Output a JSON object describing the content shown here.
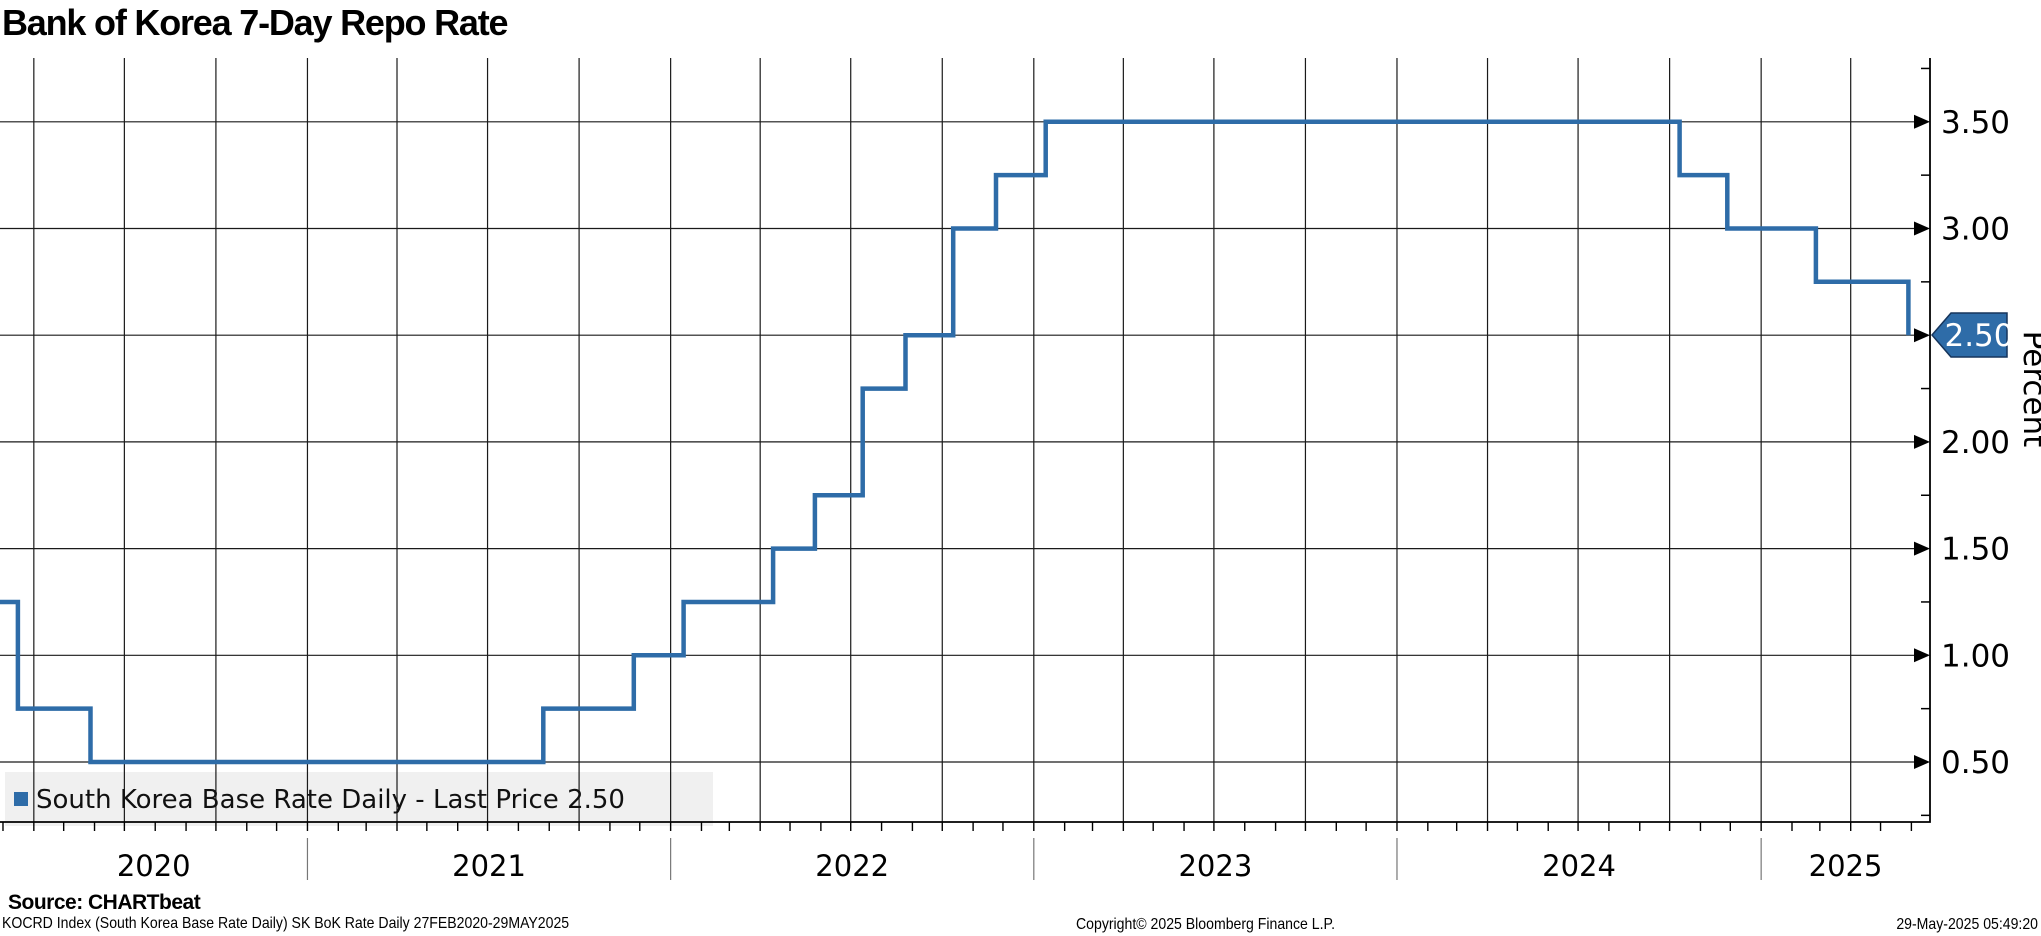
{
  "title": "Bank of Korea 7-Day Repo Rate",
  "legend": {
    "marker_color": "#2e6ca8",
    "label": "South Korea Base Rate Daily - Last Price 2.50"
  },
  "y_axis": {
    "label": "Percent",
    "tick_labels": [
      "3.50",
      "3.00",
      "2.00",
      "1.50",
      "1.00",
      "0.50"
    ],
    "tick_values": [
      3.5,
      3.0,
      2.0,
      1.5,
      1.0,
      0.5
    ],
    "last_price_badge": "2.50"
  },
  "x_axis": {
    "year_labels": [
      "2020",
      "2021",
      "2022",
      "2023",
      "2024",
      "2025"
    ]
  },
  "footer": {
    "source": "Source: CHARTbeat",
    "description": "KOCRD Index (South Korea Base Rate Daily) SK BoK Rate  Daily 27FEB2020-29MAY2025",
    "copyright": "Copyright© 2025 Bloomberg Finance L.P.",
    "timestamp": "29-May-2025 05:49:20"
  },
  "colors": {
    "line": "#2e6ca8",
    "badge_fill": "#2e6ca8",
    "badge_text": "#ffffff",
    "grid": "#1a1a1a",
    "axis": "#000000",
    "legend_bg": "#efefef"
  },
  "chart_data": {
    "type": "line",
    "style": "step-after",
    "title": "Bank of Korea 7-Day Repo Rate",
    "series_name": "South Korea Base Rate Daily",
    "ylabel": "Percent",
    "ylim": [
      0.23,
      3.8
    ],
    "y_major_ticks": [
      0.5,
      1.0,
      1.5,
      2.0,
      2.5,
      3.0,
      3.5
    ],
    "y_minor_tick_step": 0.25,
    "x_range": [
      "2020-02-27",
      "2025-05-29"
    ],
    "x_year_ticks": [
      2020,
      2021,
      2022,
      2023,
      2024,
      2025
    ],
    "grid": "both",
    "legend_position": "bottom-left",
    "last_price": 2.5,
    "steps": [
      {
        "date": "2020-02-27",
        "rate": 1.25
      },
      {
        "date": "2020-03-16",
        "rate": 0.75
      },
      {
        "date": "2020-05-28",
        "rate": 0.5
      },
      {
        "date": "2021-08-26",
        "rate": 0.75
      },
      {
        "date": "2021-11-25",
        "rate": 1.0
      },
      {
        "date": "2022-01-14",
        "rate": 1.25
      },
      {
        "date": "2022-04-14",
        "rate": 1.5
      },
      {
        "date": "2022-05-26",
        "rate": 1.75
      },
      {
        "date": "2022-07-13",
        "rate": 2.25
      },
      {
        "date": "2022-08-25",
        "rate": 2.5
      },
      {
        "date": "2022-10-12",
        "rate": 3.0
      },
      {
        "date": "2022-11-24",
        "rate": 3.25
      },
      {
        "date": "2023-01-13",
        "rate": 3.5
      },
      {
        "date": "2024-10-11",
        "rate": 3.25
      },
      {
        "date": "2024-11-28",
        "rate": 3.0
      },
      {
        "date": "2025-02-25",
        "rate": 2.75
      },
      {
        "date": "2025-05-29",
        "rate": 2.5
      }
    ]
  }
}
